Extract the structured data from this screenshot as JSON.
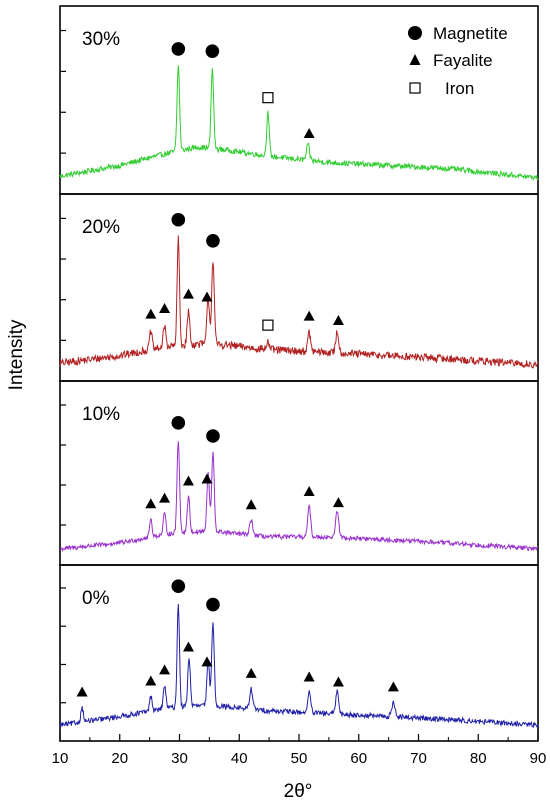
{
  "chart_data": {
    "type": "line",
    "xlabel": "2θ°",
    "ylabel": "Intensity",
    "xlim": [
      10,
      90
    ],
    "x_ticks": [
      10,
      20,
      30,
      40,
      50,
      60,
      70,
      80,
      90
    ],
    "grid": false,
    "legend": {
      "placement": "top-right",
      "entries": [
        {
          "marker": "circle",
          "label": "Magnetite"
        },
        {
          "marker": "triangle",
          "label": "Fayalite"
        },
        {
          "marker": "square",
          "label": "Iron"
        }
      ]
    },
    "panels": [
      {
        "name": "30%",
        "color": "#33cc33",
        "baseline": [
          [
            10,
            0.05
          ],
          [
            20,
            0.12
          ],
          [
            28,
            0.2
          ],
          [
            33,
            0.24
          ],
          [
            38,
            0.22
          ],
          [
            45,
            0.18
          ],
          [
            55,
            0.14
          ],
          [
            65,
            0.12
          ],
          [
            75,
            0.1
          ],
          [
            85,
            0.06
          ],
          [
            90,
            0.04
          ]
        ],
        "peaks": [
          [
            29.8,
            0.55,
            0.3
          ],
          [
            35.5,
            0.52,
            0.3
          ],
          [
            44.8,
            0.28,
            0.3
          ],
          [
            51.5,
            0.1,
            0.35
          ]
        ],
        "noise": 0.035,
        "markers": [
          {
            "type": "circle",
            "x": 29.8
          },
          {
            "type": "circle",
            "x": 35.5
          },
          {
            "type": "square",
            "x": 44.8
          },
          {
            "type": "triangle",
            "x": 51.7
          }
        ]
      },
      {
        "name": "20%",
        "color": "#b22222",
        "baseline": [
          [
            10,
            0.05
          ],
          [
            20,
            0.1
          ],
          [
            28,
            0.16
          ],
          [
            35,
            0.18
          ],
          [
            45,
            0.14
          ],
          [
            55,
            0.12
          ],
          [
            65,
            0.1
          ],
          [
            75,
            0.08
          ],
          [
            90,
            0.04
          ]
        ],
        "peaks": [
          [
            25.2,
            0.12,
            0.3
          ],
          [
            27.5,
            0.14,
            0.3
          ],
          [
            29.8,
            0.7,
            0.28
          ],
          [
            31.5,
            0.22,
            0.3
          ],
          [
            34.8,
            0.3,
            0.3
          ],
          [
            35.6,
            0.55,
            0.3
          ],
          [
            44.8,
            0.05,
            0.3
          ],
          [
            51.7,
            0.12,
            0.35
          ],
          [
            56.4,
            0.14,
            0.35
          ]
        ],
        "noise": 0.05,
        "markers": [
          {
            "type": "circle",
            "x": 29.8
          },
          {
            "type": "circle",
            "x": 35.6
          },
          {
            "type": "triangle",
            "x": 25.2
          },
          {
            "type": "triangle",
            "x": 27.5
          },
          {
            "type": "triangle",
            "x": 31.5
          },
          {
            "type": "triangle",
            "x": 34.6
          },
          {
            "type": "square",
            "x": 44.8
          },
          {
            "type": "triangle",
            "x": 51.7
          },
          {
            "type": "triangle",
            "x": 56.6
          }
        ]
      },
      {
        "name": "10%",
        "color": "#9932cc",
        "baseline": [
          [
            10,
            0.04
          ],
          [
            20,
            0.08
          ],
          [
            28,
            0.14
          ],
          [
            35,
            0.16
          ],
          [
            45,
            0.12
          ],
          [
            55,
            0.12
          ],
          [
            65,
            0.1
          ],
          [
            75,
            0.08
          ],
          [
            90,
            0.04
          ]
        ],
        "peaks": [
          [
            25.2,
            0.12,
            0.3
          ],
          [
            27.5,
            0.14,
            0.3
          ],
          [
            29.8,
            0.62,
            0.3
          ],
          [
            31.5,
            0.24,
            0.3
          ],
          [
            34.8,
            0.38,
            0.3
          ],
          [
            35.6,
            0.52,
            0.3
          ],
          [
            42,
            0.1,
            0.35
          ],
          [
            51.7,
            0.2,
            0.35
          ],
          [
            56.4,
            0.18,
            0.35
          ]
        ],
        "noise": 0.03,
        "markers": [
          {
            "type": "circle",
            "x": 29.8
          },
          {
            "type": "circle",
            "x": 35.6
          },
          {
            "type": "triangle",
            "x": 25.2
          },
          {
            "type": "triangle",
            "x": 27.5
          },
          {
            "type": "triangle",
            "x": 31.5
          },
          {
            "type": "triangle",
            "x": 34.6
          },
          {
            "type": "triangle",
            "x": 42
          },
          {
            "type": "triangle",
            "x": 51.7
          },
          {
            "type": "triangle",
            "x": 56.6
          }
        ]
      },
      {
        "name": "0%",
        "color": "#1f1fa8",
        "baseline": [
          [
            10,
            0.04
          ],
          [
            20,
            0.1
          ],
          [
            28,
            0.16
          ],
          [
            35,
            0.18
          ],
          [
            45,
            0.14
          ],
          [
            55,
            0.12
          ],
          [
            65,
            0.1
          ],
          [
            75,
            0.08
          ],
          [
            90,
            0.04
          ]
        ],
        "peaks": [
          [
            13.7,
            0.1,
            0.3
          ],
          [
            25.2,
            0.1,
            0.3
          ],
          [
            27.5,
            0.16,
            0.3
          ],
          [
            29.8,
            0.72,
            0.28
          ],
          [
            31.6,
            0.34,
            0.3
          ],
          [
            34.8,
            0.3,
            0.3
          ],
          [
            35.6,
            0.58,
            0.3
          ],
          [
            42,
            0.14,
            0.35
          ],
          [
            51.7,
            0.14,
            0.35
          ],
          [
            56.4,
            0.16,
            0.35
          ],
          [
            65.8,
            0.1,
            0.4
          ]
        ],
        "noise": 0.035,
        "markers": [
          {
            "type": "circle",
            "x": 29.8
          },
          {
            "type": "circle",
            "x": 35.6
          },
          {
            "type": "triangle",
            "x": 13.7
          },
          {
            "type": "triangle",
            "x": 25.2
          },
          {
            "type": "triangle",
            "x": 27.5
          },
          {
            "type": "triangle",
            "x": 31.5
          },
          {
            "type": "triangle",
            "x": 34.6
          },
          {
            "type": "triangle",
            "x": 42
          },
          {
            "type": "triangle",
            "x": 51.7
          },
          {
            "type": "triangle",
            "x": 56.6
          },
          {
            "type": "triangle",
            "x": 65.8
          }
        ]
      }
    ]
  }
}
